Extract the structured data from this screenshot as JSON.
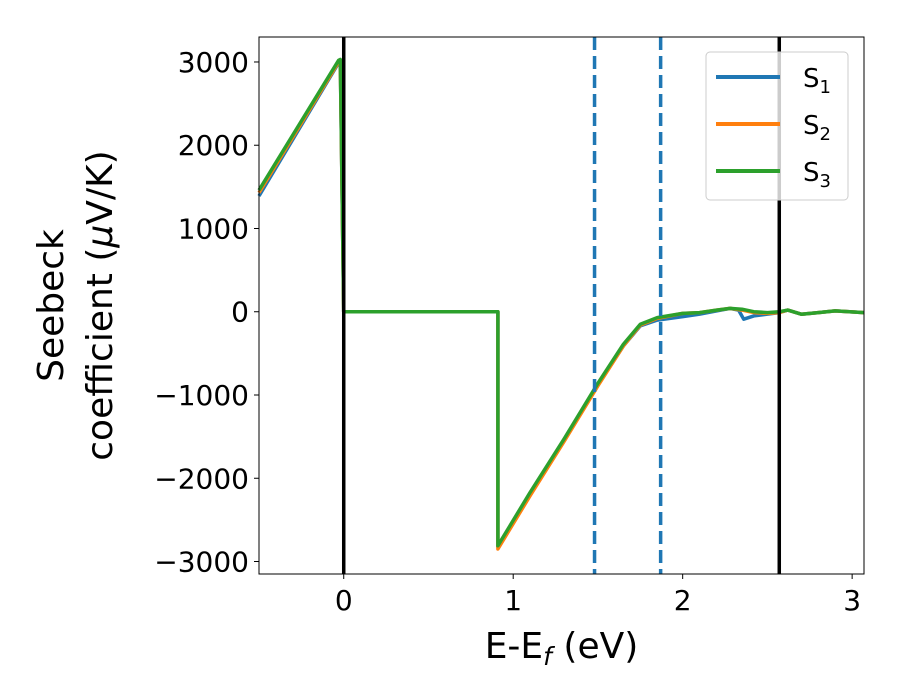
{
  "chart_data": {
    "type": "line",
    "xlabel_main": "E-E",
    "xlabel_sub": "f",
    "xlabel_unit": " (eV)",
    "ylabel_line1": "Seebeck",
    "ylabel_line2_text": "coefficient  (",
    "ylabel_mu": "μ",
    "ylabel_line2_end": "V/K)",
    "xlim": [
      -0.5,
      3.07
    ],
    "ylim": [
      -3150,
      3300
    ],
    "xticks": [
      0,
      1,
      2,
      3
    ],
    "xtick_labels": [
      "0",
      "1",
      "2",
      "3"
    ],
    "yticks": [
      3000,
      2000,
      1000,
      0,
      -1000,
      -2000,
      -3000
    ],
    "ytick_labels": [
      "3000",
      "2000",
      "1000",
      "0",
      "−1000",
      "−2000",
      "−3000"
    ],
    "grid": false,
    "legend_position": "top-right",
    "vlines": [
      {
        "x": 0.0,
        "style": "solid",
        "color": "#000000"
      },
      {
        "x": 2.57,
        "style": "solid",
        "color": "#000000"
      },
      {
        "x": 1.48,
        "style": "dashed",
        "color": "#1f77b4"
      },
      {
        "x": 1.87,
        "style": "dashed",
        "color": "#1f77b4"
      }
    ],
    "series": [
      {
        "name_base": "S",
        "name_sub": "1",
        "color": "#1f77b4",
        "x": [
          -0.5,
          -0.03,
          -0.02,
          0.0,
          0.91,
          0.91,
          1.1,
          1.3,
          1.5,
          1.65,
          1.75,
          1.85,
          2.0,
          2.1,
          2.2,
          2.28,
          2.33,
          2.36,
          2.42,
          2.5,
          2.57,
          2.62,
          2.7,
          2.8,
          2.9,
          3.07
        ],
        "values": [
          1390,
          2990,
          3000,
          0,
          0,
          -2820,
          -2180,
          -1540,
          -880,
          -410,
          -170,
          -100,
          -60,
          -30,
          10,
          40,
          20,
          -90,
          -50,
          -30,
          -10,
          20,
          -30,
          -10,
          10,
          -10
        ]
      },
      {
        "name_base": "S",
        "name_sub": "2",
        "color": "#ff7f0e",
        "x": [
          -0.5,
          -0.03,
          -0.02,
          0.0,
          0.91,
          0.91,
          1.1,
          1.3,
          1.5,
          1.65,
          1.75,
          1.85,
          2.0,
          2.1,
          2.2,
          2.28,
          2.35,
          2.42,
          2.5,
          2.57,
          2.62,
          2.7,
          2.8,
          2.9,
          3.07
        ],
        "values": [
          1430,
          3000,
          3010,
          0,
          0,
          -2850,
          -2210,
          -1560,
          -890,
          -410,
          -160,
          -80,
          -20,
          -10,
          20,
          40,
          20,
          -10,
          -20,
          -10,
          20,
          -30,
          -10,
          10,
          -10
        ]
      },
      {
        "name_base": "S",
        "name_sub": "3",
        "color": "#2ca02c",
        "x": [
          -0.5,
          -0.03,
          -0.02,
          0.0,
          0.91,
          0.91,
          1.1,
          1.3,
          1.5,
          1.65,
          1.75,
          1.85,
          2.0,
          2.1,
          2.2,
          2.28,
          2.35,
          2.42,
          2.5,
          2.57,
          2.62,
          2.7,
          2.8,
          2.9,
          3.07
        ],
        "values": [
          1460,
          3020,
          3030,
          0,
          0,
          -2810,
          -2170,
          -1530,
          -860,
          -390,
          -150,
          -70,
          -20,
          -10,
          20,
          40,
          30,
          0,
          -10,
          0,
          20,
          -30,
          -10,
          10,
          -10
        ]
      }
    ]
  }
}
